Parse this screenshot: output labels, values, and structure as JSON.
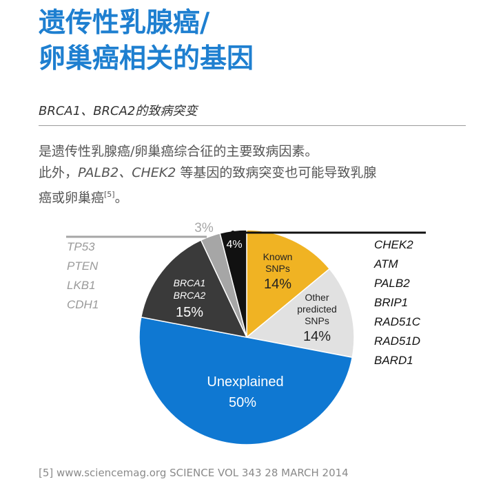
{
  "header": {
    "title_line1": "遗传性乳腺癌/",
    "title_line2": "卵巢癌相关的基因",
    "subtitle": "BRCA1、BRCA2的致病突变"
  },
  "description": {
    "line1": "是遗传性乳腺癌/卵巢癌综合征的主要致病因素。",
    "line2_prefix": "此外，",
    "line2_genes": "PALB2、CHEK2",
    "line2_suffix": " 等基因的致病突变也可能导致乳腺",
    "line3": "癌或卵巢癌",
    "line3_ref": "[5]",
    "line3_end": "。"
  },
  "chart_data": {
    "type": "pie",
    "slices": [
      {
        "label": "Known SNPs",
        "value": 14,
        "display": "14%",
        "color": "#f0b323"
      },
      {
        "label": "Other predicted SNPs",
        "value": 14,
        "display": "14%",
        "color": "#e1e1e1"
      },
      {
        "label": "Unexplained",
        "value": 50,
        "display": "50%",
        "color": "#0f78d2"
      },
      {
        "label": "BRCA1 BRCA2",
        "value": 15,
        "display": "15%",
        "color": "#3a3a3a"
      },
      {
        "label": "",
        "value": 3,
        "display": "3%",
        "color": "#a6a6a6"
      },
      {
        "label": "",
        "value": 4,
        "display": "4%",
        "color": "#111111"
      }
    ],
    "left_genes": [
      "TP53",
      "PTEN",
      "LKB1",
      "CDH1"
    ],
    "right_genes": [
      "CHEK2",
      "ATM",
      "PALB2",
      "BRIP1",
      "RAD51C",
      "RAD51D",
      "BARD1"
    ]
  },
  "pie_text": {
    "known_line1": "Known",
    "known_line2": "SNPs",
    "known_pct": "14%",
    "other_line1": "Other",
    "other_line2": "predicted",
    "other_line3": "SNPs",
    "other_pct": "14%",
    "unexplained": "Unexplained",
    "unexplained_pct": "50%",
    "brca_line1": "BRCA1",
    "brca_line2": "BRCA2",
    "brca_pct": "15%",
    "three_pct": "3%",
    "four_pct": "4%"
  },
  "footer": "[5] www.sciencemag.org SCIENCE VOL 343 28 MARCH 2014"
}
